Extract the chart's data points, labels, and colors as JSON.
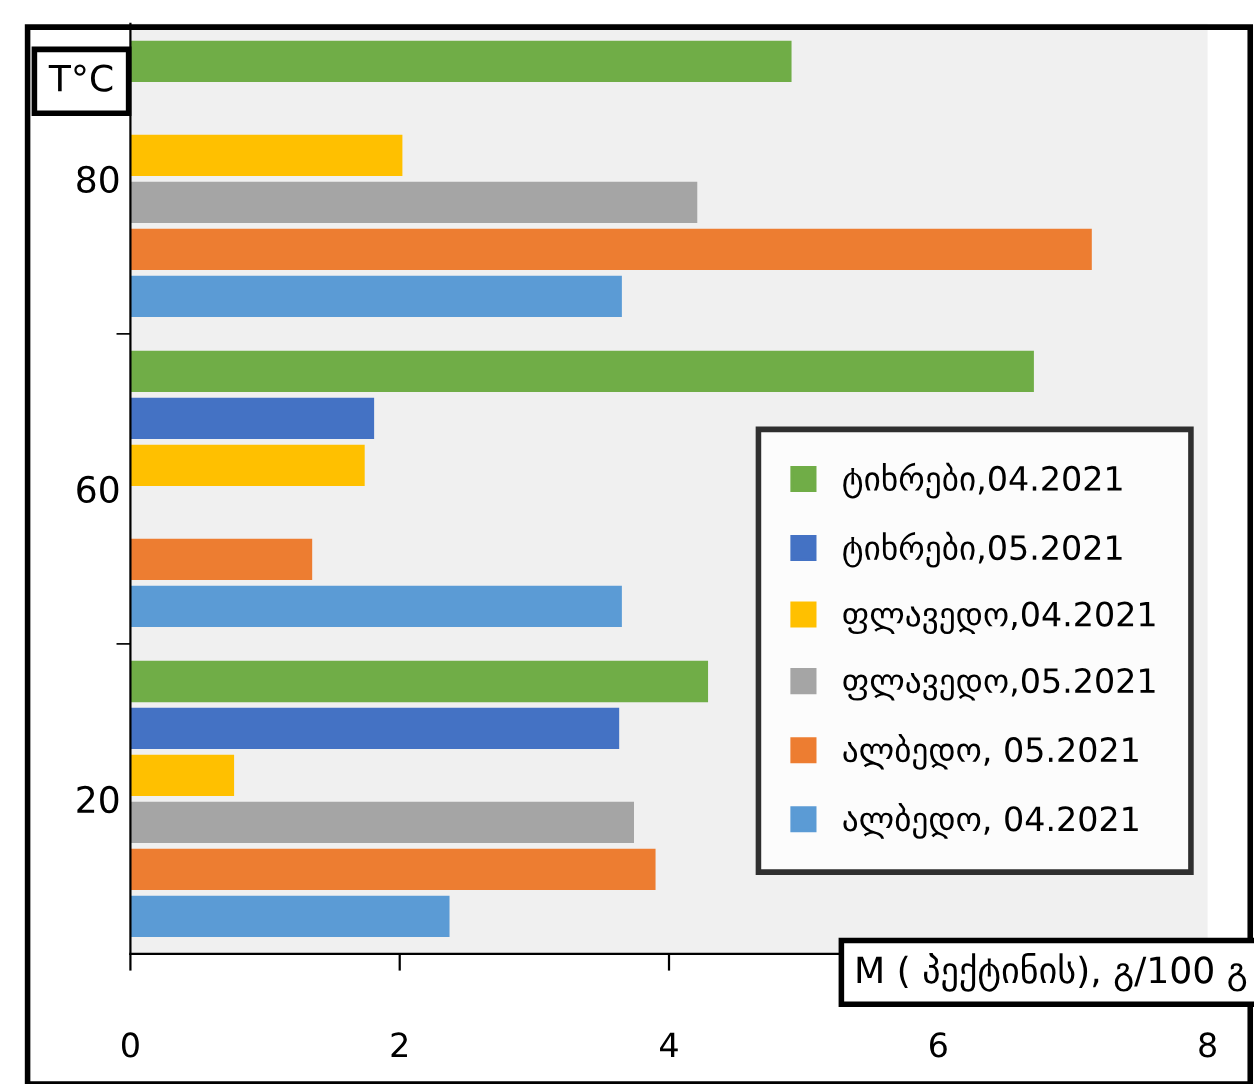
{
  "chart_data": {
    "type": "bar",
    "orientation": "horizontal",
    "xlabel": "M ( პექტინის), გ/100 გ",
    "ylabel": "T°C",
    "categories": [
      "80",
      "60",
      "20"
    ],
    "series": [
      {
        "name": "ტიხრები,04.2021",
        "color": "#70ad47",
        "values": [
          4.91,
          6.71,
          4.29
        ]
      },
      {
        "name": "ტიხრები,05.2021",
        "color": "#4472c4",
        "values": [
          null,
          1.81,
          3.63
        ]
      },
      {
        "name": "ფლავედო,04.2021",
        "color": "#ffc000",
        "values": [
          2.02,
          1.74,
          0.77
        ]
      },
      {
        "name": "ფლავედო,05.2021",
        "color": "#a5a5a5",
        "values": [
          4.21,
          null,
          3.74
        ]
      },
      {
        "name": "ალბედო, 05.2021",
        "color": "#ed7d31",
        "values": [
          7.14,
          1.35,
          3.9
        ]
      },
      {
        "name": "ალბედო, 04.2021",
        "color": "#5b9bd5",
        "values": [
          3.65,
          3.65,
          2.37
        ]
      }
    ],
    "xlim": [
      0,
      8
    ],
    "xticks": [
      0,
      2,
      4,
      6,
      8
    ],
    "grid": false,
    "legend": "bottom right"
  }
}
